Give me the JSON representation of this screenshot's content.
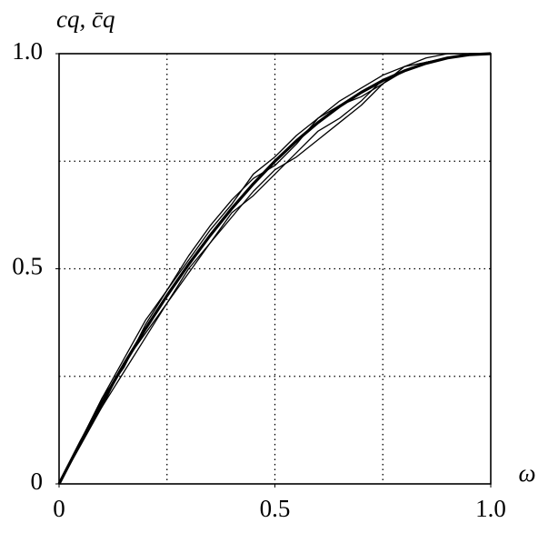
{
  "chart_data": {
    "type": "line",
    "x_label": "ω",
    "y_label": "cq, c̄q",
    "x": [
      0,
      0.05,
      0.1,
      0.15,
      0.2,
      0.25,
      0.3,
      0.35,
      0.4,
      0.45,
      0.5,
      0.55,
      0.6,
      0.65,
      0.7,
      0.75,
      0.8,
      0.85,
      0.9,
      0.95,
      1
    ],
    "series": [
      {
        "color": "#000000",
        "style": "thin",
        "values": [
          0,
          0.1,
          0.2,
          0.27,
          0.37,
          0.45,
          0.53,
          0.6,
          0.66,
          0.71,
          0.74,
          0.79,
          0.85,
          0.88,
          0.9,
          0.93,
          0.96,
          0.98,
          0.99,
          1.0,
          1
        ]
      },
      {
        "color": "#000000",
        "style": "thin",
        "values": [
          0,
          0.09,
          0.18,
          0.28,
          0.35,
          0.42,
          0.49,
          0.56,
          0.62,
          0.68,
          0.73,
          0.76,
          0.8,
          0.84,
          0.88,
          0.93,
          0.97,
          0.99,
          1.0,
          1,
          1
        ]
      },
      {
        "color": "#000000",
        "style": "thin",
        "values": [
          0,
          0.1,
          0.2,
          0.29,
          0.38,
          0.45,
          0.52,
          0.59,
          0.65,
          0.72,
          0.76,
          0.81,
          0.85,
          0.89,
          0.92,
          0.95,
          0.97,
          0.98,
          0.99,
          1.0,
          1
        ]
      },
      {
        "color": "#000000",
        "style": "thin",
        "values": [
          0,
          0.1,
          0.18,
          0.26,
          0.34,
          0.42,
          0.5,
          0.56,
          0.63,
          0.67,
          0.72,
          0.77,
          0.82,
          0.85,
          0.89,
          0.94,
          0.96,
          0.98,
          0.99,
          1.0,
          1
        ]
      },
      {
        "color": "#000000",
        "style": "bold",
        "values": [
          0,
          0.0975,
          0.19,
          0.2775,
          0.36,
          0.4375,
          0.51,
          0.5775,
          0.64,
          0.6975,
          0.75,
          0.7975,
          0.84,
          0.8775,
          0.91,
          0.9375,
          0.96,
          0.9775,
          0.99,
          0.9975,
          1
        ]
      }
    ],
    "xlim": [
      0,
      1
    ],
    "ylim": [
      0,
      1
    ],
    "xticks": [
      0,
      0.5,
      {
        "value": 1,
        "label": "1.0"
      }
    ],
    "yticks": [
      0,
      0.5,
      {
        "value": 1,
        "label": "1.0"
      }
    ],
    "xgrid": [
      0.25,
      0.5,
      0.75
    ],
    "ygrid": [
      0.25,
      0.5,
      0.75
    ]
  }
}
